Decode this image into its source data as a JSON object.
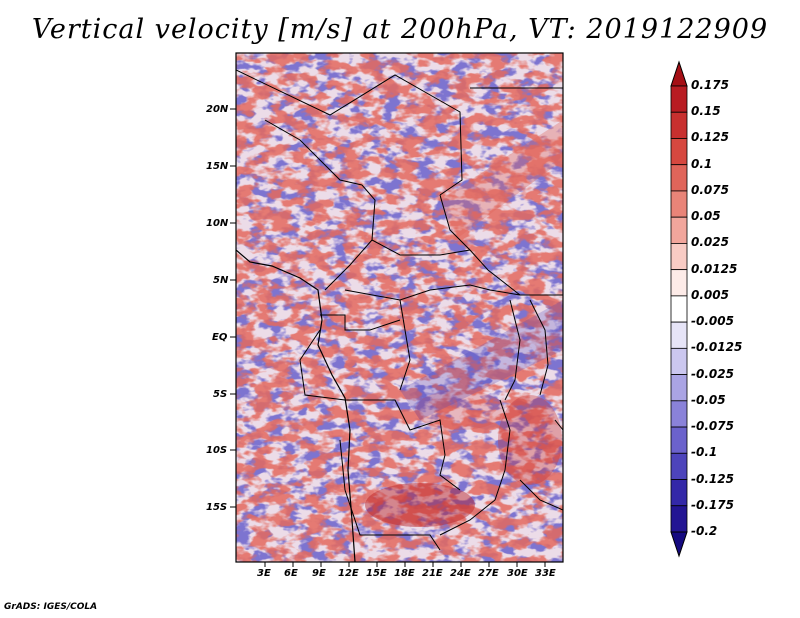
{
  "title": "Vertical velocity [m/s] at 200hPa, VT: 2019122909",
  "footer": "GrADS: IGES/COLA",
  "map": {
    "lat_labels": [
      "20N",
      "15N",
      "10N",
      "5N",
      "EQ",
      "5S",
      "10S",
      "15S"
    ],
    "lon_labels": [
      "3E",
      "6E",
      "9E",
      "12E",
      "15E",
      "18E",
      "21E",
      "24E",
      "27E",
      "30E",
      "33E"
    ]
  },
  "colorbar": {
    "labels": [
      "0.175",
      "0.15",
      "0.125",
      "0.1",
      "0.075",
      "0.05",
      "0.025",
      "0.0125",
      "0.005",
      "-0.005",
      "-0.0125",
      "-0.025",
      "-0.05",
      "-0.075",
      "-0.1",
      "-0.125",
      "-0.175",
      "-0.2"
    ],
    "colors": [
      "#a50f15",
      "#b81c22",
      "#c8302f",
      "#d6483f",
      "#e0655a",
      "#e98478",
      "#f2a69c",
      "#f8cbc4",
      "#fdebe8",
      "#ffffff",
      "#e6e4f7",
      "#cbc7ef",
      "#aaa4e4",
      "#8a82d9",
      "#6b62cc",
      "#4d44bb",
      "#3328a8",
      "#231593",
      "#150a80"
    ]
  }
}
